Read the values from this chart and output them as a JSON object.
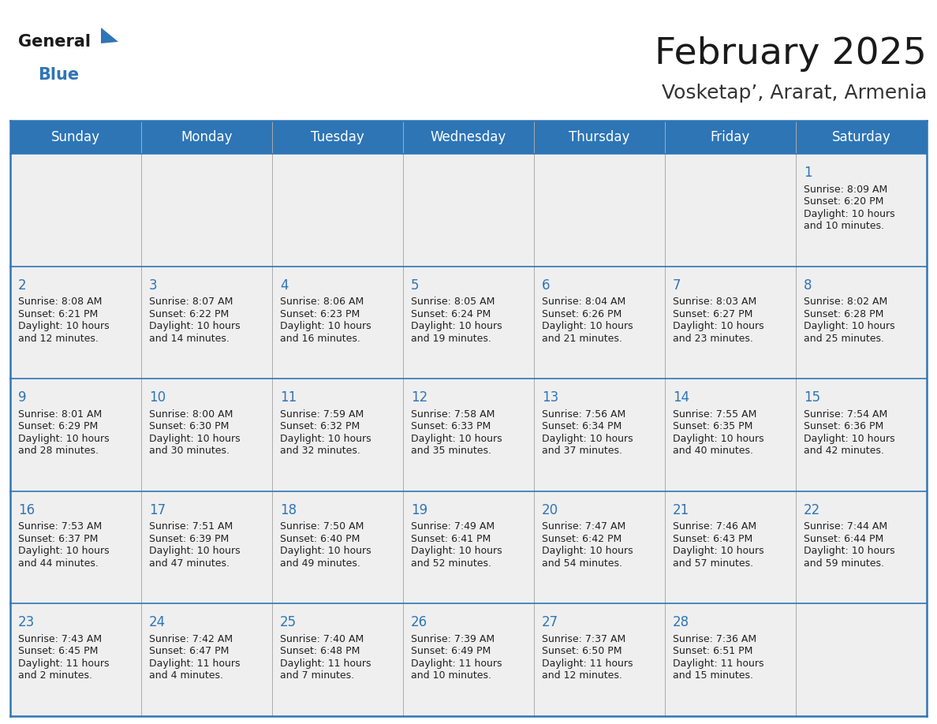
{
  "title": "February 2025",
  "subtitle": "Vosketap’, Ararat, Armenia",
  "header_bg": "#2E75B6",
  "header_text_color": "#FFFFFF",
  "cell_bg": "#EFEFEF",
  "border_color": "#2E75B6",
  "separator_color": "#2E75B6",
  "text_color": "#222222",
  "day_num_color": "#2E75B6",
  "day_headers": [
    "Sunday",
    "Monday",
    "Tuesday",
    "Wednesday",
    "Thursday",
    "Friday",
    "Saturday"
  ],
  "days": [
    {
      "day": 1,
      "col": 6,
      "row": 0,
      "sunrise": "8:09 AM",
      "sunset": "6:20 PM",
      "daylight_h": "10 hours",
      "daylight_m": "10 minutes."
    },
    {
      "day": 2,
      "col": 0,
      "row": 1,
      "sunrise": "8:08 AM",
      "sunset": "6:21 PM",
      "daylight_h": "10 hours",
      "daylight_m": "12 minutes."
    },
    {
      "day": 3,
      "col": 1,
      "row": 1,
      "sunrise": "8:07 AM",
      "sunset": "6:22 PM",
      "daylight_h": "10 hours",
      "daylight_m": "14 minutes."
    },
    {
      "day": 4,
      "col": 2,
      "row": 1,
      "sunrise": "8:06 AM",
      "sunset": "6:23 PM",
      "daylight_h": "10 hours",
      "daylight_m": "16 minutes."
    },
    {
      "day": 5,
      "col": 3,
      "row": 1,
      "sunrise": "8:05 AM",
      "sunset": "6:24 PM",
      "daylight_h": "10 hours",
      "daylight_m": "19 minutes."
    },
    {
      "day": 6,
      "col": 4,
      "row": 1,
      "sunrise": "8:04 AM",
      "sunset": "6:26 PM",
      "daylight_h": "10 hours",
      "daylight_m": "21 minutes."
    },
    {
      "day": 7,
      "col": 5,
      "row": 1,
      "sunrise": "8:03 AM",
      "sunset": "6:27 PM",
      "daylight_h": "10 hours",
      "daylight_m": "23 minutes."
    },
    {
      "day": 8,
      "col": 6,
      "row": 1,
      "sunrise": "8:02 AM",
      "sunset": "6:28 PM",
      "daylight_h": "10 hours",
      "daylight_m": "25 minutes."
    },
    {
      "day": 9,
      "col": 0,
      "row": 2,
      "sunrise": "8:01 AM",
      "sunset": "6:29 PM",
      "daylight_h": "10 hours",
      "daylight_m": "28 minutes."
    },
    {
      "day": 10,
      "col": 1,
      "row": 2,
      "sunrise": "8:00 AM",
      "sunset": "6:30 PM",
      "daylight_h": "10 hours",
      "daylight_m": "30 minutes."
    },
    {
      "day": 11,
      "col": 2,
      "row": 2,
      "sunrise": "7:59 AM",
      "sunset": "6:32 PM",
      "daylight_h": "10 hours",
      "daylight_m": "32 minutes."
    },
    {
      "day": 12,
      "col": 3,
      "row": 2,
      "sunrise": "7:58 AM",
      "sunset": "6:33 PM",
      "daylight_h": "10 hours",
      "daylight_m": "35 minutes."
    },
    {
      "day": 13,
      "col": 4,
      "row": 2,
      "sunrise": "7:56 AM",
      "sunset": "6:34 PM",
      "daylight_h": "10 hours",
      "daylight_m": "37 minutes."
    },
    {
      "day": 14,
      "col": 5,
      "row": 2,
      "sunrise": "7:55 AM",
      "sunset": "6:35 PM",
      "daylight_h": "10 hours",
      "daylight_m": "40 minutes."
    },
    {
      "day": 15,
      "col": 6,
      "row": 2,
      "sunrise": "7:54 AM",
      "sunset": "6:36 PM",
      "daylight_h": "10 hours",
      "daylight_m": "42 minutes."
    },
    {
      "day": 16,
      "col": 0,
      "row": 3,
      "sunrise": "7:53 AM",
      "sunset": "6:37 PM",
      "daylight_h": "10 hours",
      "daylight_m": "44 minutes."
    },
    {
      "day": 17,
      "col": 1,
      "row": 3,
      "sunrise": "7:51 AM",
      "sunset": "6:39 PM",
      "daylight_h": "10 hours",
      "daylight_m": "47 minutes."
    },
    {
      "day": 18,
      "col": 2,
      "row": 3,
      "sunrise": "7:50 AM",
      "sunset": "6:40 PM",
      "daylight_h": "10 hours",
      "daylight_m": "49 minutes."
    },
    {
      "day": 19,
      "col": 3,
      "row": 3,
      "sunrise": "7:49 AM",
      "sunset": "6:41 PM",
      "daylight_h": "10 hours",
      "daylight_m": "52 minutes."
    },
    {
      "day": 20,
      "col": 4,
      "row": 3,
      "sunrise": "7:47 AM",
      "sunset": "6:42 PM",
      "daylight_h": "10 hours",
      "daylight_m": "54 minutes."
    },
    {
      "day": 21,
      "col": 5,
      "row": 3,
      "sunrise": "7:46 AM",
      "sunset": "6:43 PM",
      "daylight_h": "10 hours",
      "daylight_m": "57 minutes."
    },
    {
      "day": 22,
      "col": 6,
      "row": 3,
      "sunrise": "7:44 AM",
      "sunset": "6:44 PM",
      "daylight_h": "10 hours",
      "daylight_m": "59 minutes."
    },
    {
      "day": 23,
      "col": 0,
      "row": 4,
      "sunrise": "7:43 AM",
      "sunset": "6:45 PM",
      "daylight_h": "11 hours",
      "daylight_m": "2 minutes."
    },
    {
      "day": 24,
      "col": 1,
      "row": 4,
      "sunrise": "7:42 AM",
      "sunset": "6:47 PM",
      "daylight_h": "11 hours",
      "daylight_m": "4 minutes."
    },
    {
      "day": 25,
      "col": 2,
      "row": 4,
      "sunrise": "7:40 AM",
      "sunset": "6:48 PM",
      "daylight_h": "11 hours",
      "daylight_m": "7 minutes."
    },
    {
      "day": 26,
      "col": 3,
      "row": 4,
      "sunrise": "7:39 AM",
      "sunset": "6:49 PM",
      "daylight_h": "11 hours",
      "daylight_m": "10 minutes."
    },
    {
      "day": 27,
      "col": 4,
      "row": 4,
      "sunrise": "7:37 AM",
      "sunset": "6:50 PM",
      "daylight_h": "11 hours",
      "daylight_m": "12 minutes."
    },
    {
      "day": 28,
      "col": 5,
      "row": 4,
      "sunrise": "7:36 AM",
      "sunset": "6:51 PM",
      "daylight_h": "11 hours",
      "daylight_m": "15 minutes."
    }
  ],
  "num_rows": 5,
  "num_cols": 7,
  "title_fontsize": 34,
  "subtitle_fontsize": 18,
  "header_fontsize": 12,
  "day_num_fontsize": 12,
  "info_fontsize": 9,
  "logo_general_fontsize": 15,
  "logo_blue_fontsize": 15
}
